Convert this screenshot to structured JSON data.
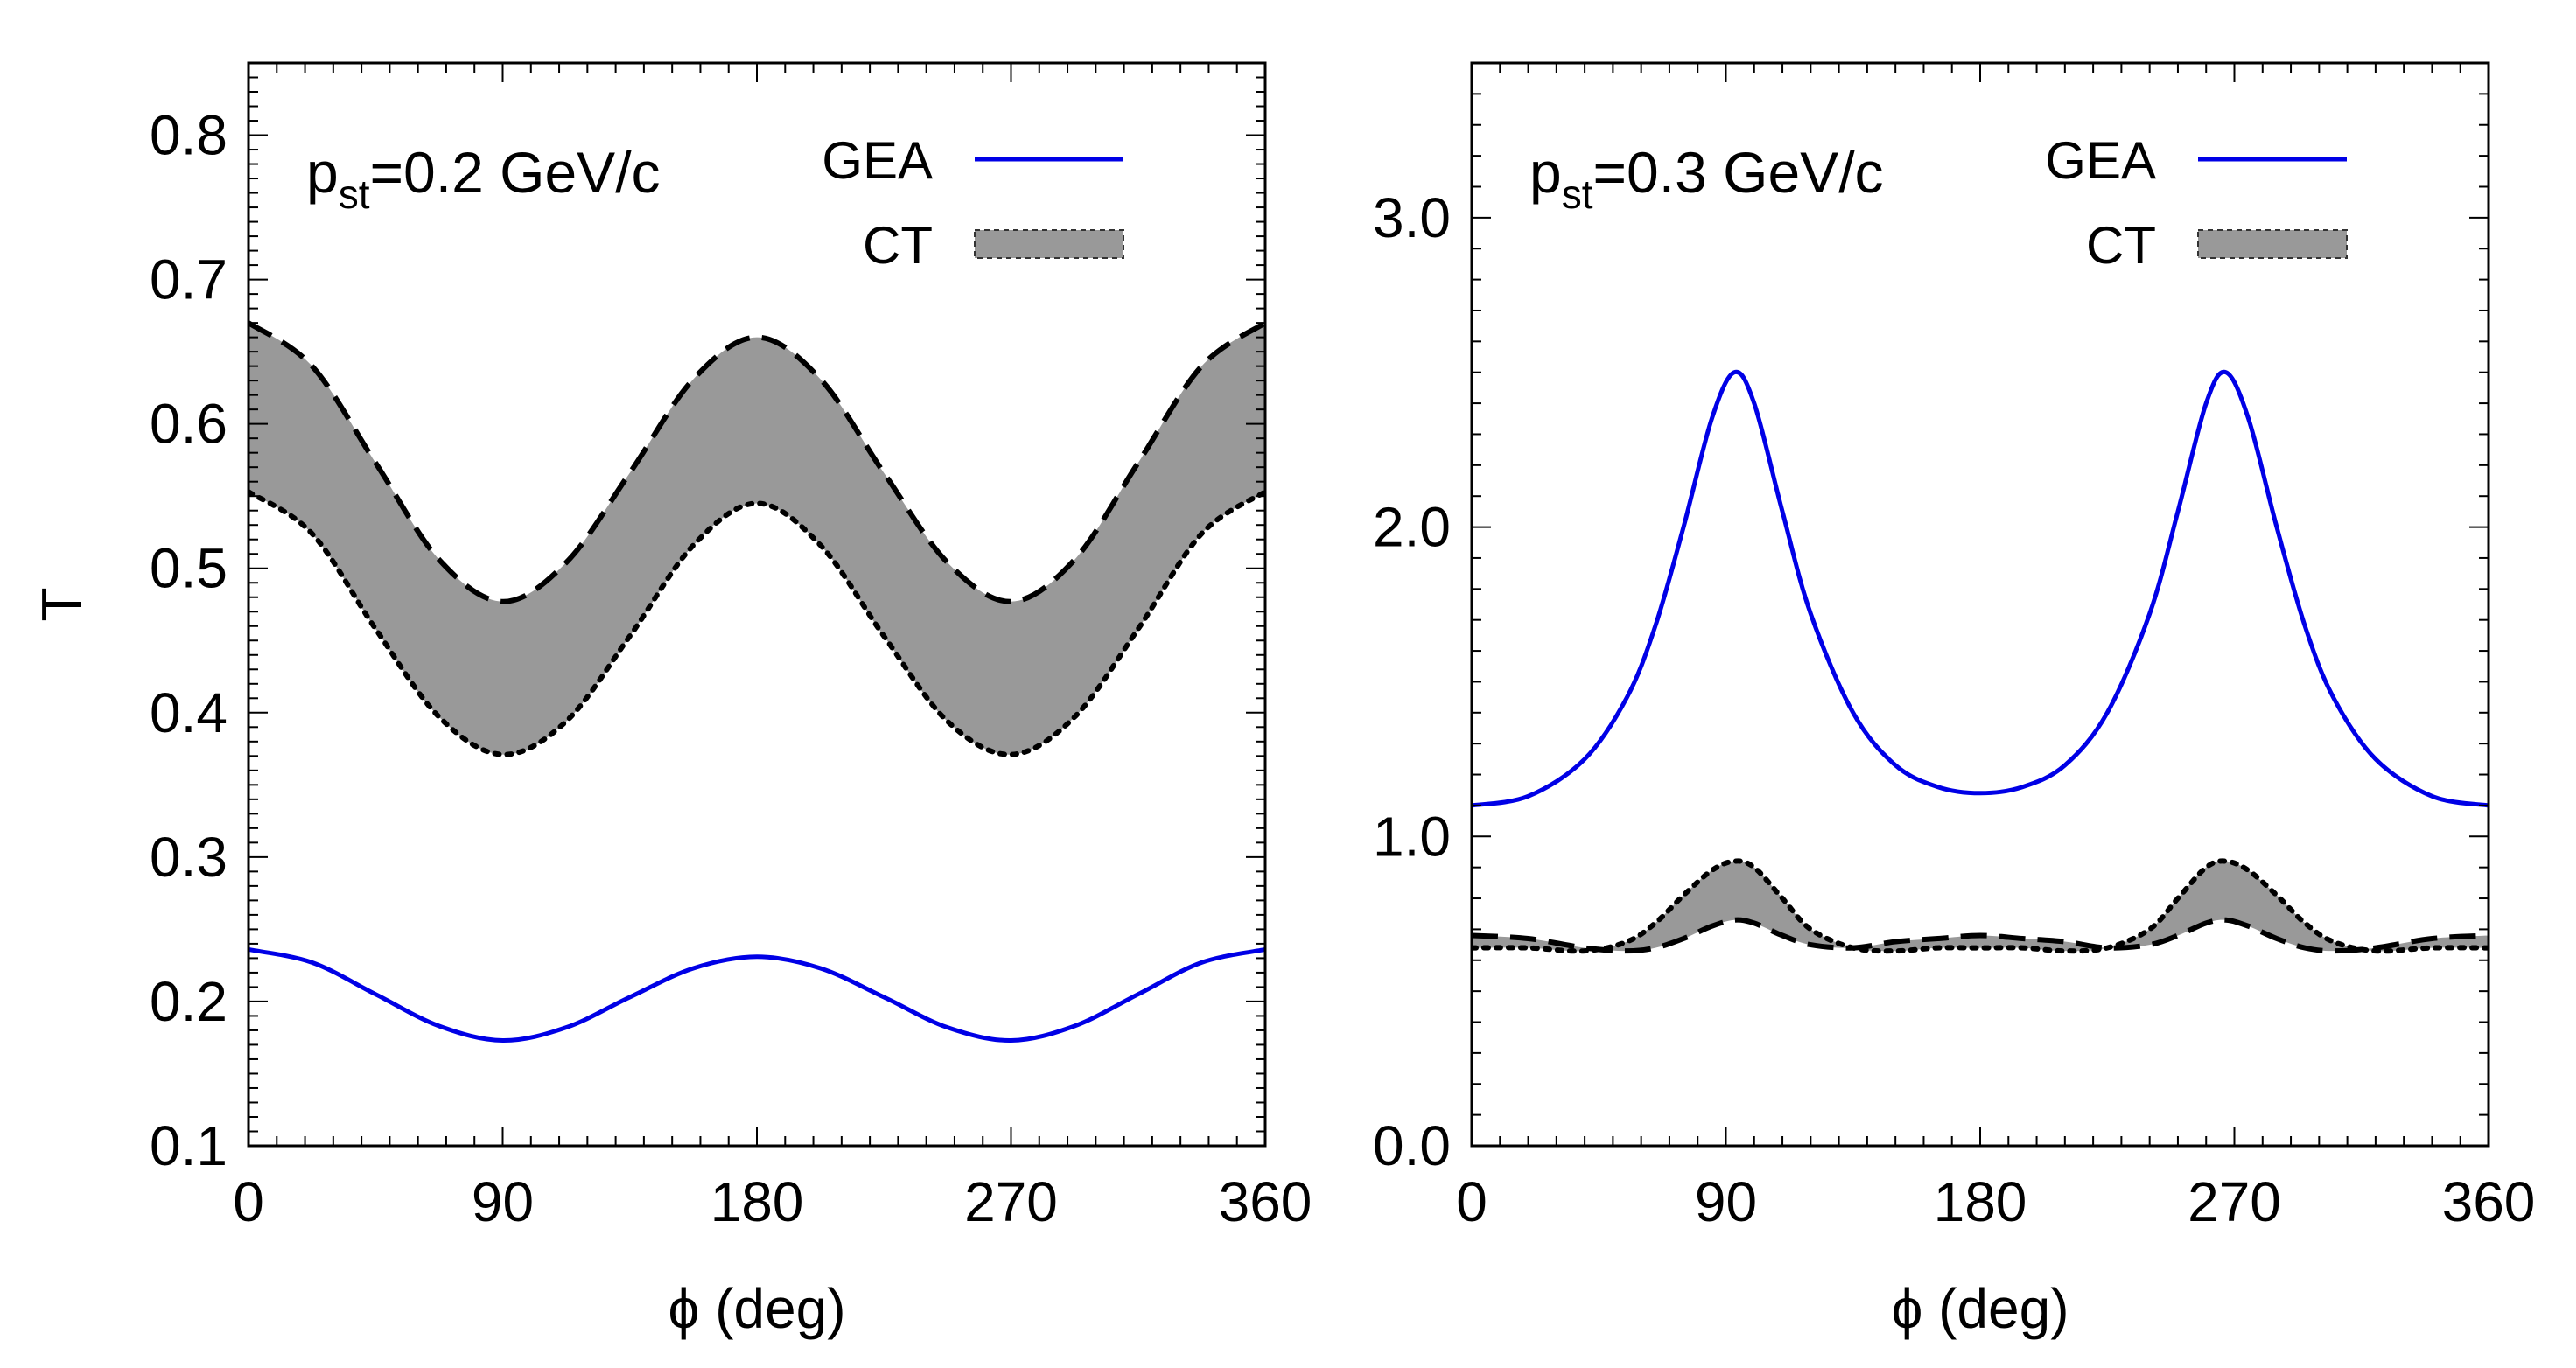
{
  "chart_data": [
    {
      "type": "area",
      "annotation": {
        "main": "p",
        "sub": "st",
        "rest": "=0.2 GeV/c"
      },
      "xlabel": "ϕ (deg)",
      "ylabel": "T",
      "xlim": [
        0,
        360
      ],
      "ylim": [
        0.1,
        0.85
      ],
      "xticks": [
        0,
        90,
        180,
        270,
        360
      ],
      "xtick_labels": [
        "0",
        "90",
        "180",
        "270",
        "360"
      ],
      "yticks": [
        0.1,
        0.2,
        0.3,
        0.4,
        0.5,
        0.6,
        0.7,
        0.8
      ],
      "ytick_labels": [
        "0.1",
        "0.2",
        "0.3",
        "0.4",
        "0.5",
        "0.6",
        "0.7",
        "0.8"
      ],
      "legend": {
        "placement": "top-right",
        "entries": [
          {
            "label": "GEA",
            "style": "blue-line"
          },
          {
            "label": "CT",
            "style": "gray-band"
          }
        ]
      },
      "series": [
        {
          "name": "GEA",
          "style": "solid",
          "color": "#0000e6",
          "x": [
            0,
            22.5,
            45,
            67.5,
            90,
            112.5,
            135,
            157.5,
            180,
            202.5,
            225,
            247.5,
            270,
            292.5,
            315,
            337.5,
            360
          ],
          "y": [
            0.236,
            0.227,
            0.205,
            0.183,
            0.173,
            0.182,
            0.203,
            0.223,
            0.231,
            0.223,
            0.203,
            0.182,
            0.173,
            0.183,
            0.205,
            0.227,
            0.236
          ]
        },
        {
          "name": "CT upper",
          "style": "dashed",
          "color": "#000000",
          "x": [
            0,
            22.5,
            45,
            67.5,
            90,
            112.5,
            135,
            157.5,
            180,
            202.5,
            225,
            247.5,
            270,
            292.5,
            315,
            337.5,
            360
          ],
          "y": [
            0.67,
            0.64,
            0.573,
            0.506,
            0.477,
            0.504,
            0.566,
            0.631,
            0.66,
            0.631,
            0.566,
            0.504,
            0.477,
            0.506,
            0.573,
            0.64,
            0.67
          ]
        },
        {
          "name": "CT lower",
          "style": "dotted",
          "color": "#000000",
          "x": [
            0,
            22.5,
            45,
            67.5,
            90,
            112.5,
            135,
            157.5,
            180,
            202.5,
            225,
            247.5,
            270,
            292.5,
            315,
            337.5,
            360
          ],
          "y": [
            0.553,
            0.524,
            0.458,
            0.397,
            0.371,
            0.394,
            0.453,
            0.516,
            0.545,
            0.516,
            0.453,
            0.394,
            0.371,
            0.397,
            0.458,
            0.524,
            0.553
          ]
        }
      ],
      "band": {
        "between": [
          "CT lower",
          "CT upper"
        ],
        "color": "#999999"
      }
    },
    {
      "type": "area",
      "annotation": {
        "main": "p",
        "sub": "st",
        "rest": "=0.3 GeV/c"
      },
      "xlabel": "ϕ (deg)",
      "ylabel": "",
      "xlim": [
        0,
        360
      ],
      "ylim": [
        0,
        3.5
      ],
      "xticks": [
        0,
        90,
        180,
        270,
        360
      ],
      "xtick_labels": [
        "0",
        "90",
        "180",
        "270",
        "360"
      ],
      "yticks": [
        0,
        1,
        2,
        3
      ],
      "ytick_labels": [
        "0.0",
        "1.0",
        "2.0",
        "3.0"
      ],
      "legend": {
        "placement": "top-right",
        "entries": [
          {
            "label": "GEA",
            "style": "blue-line"
          },
          {
            "label": "CT",
            "style": "gray-band"
          }
        ]
      },
      "series": [
        {
          "name": "GEA",
          "style": "solid",
          "color": "#0000e6",
          "x": [
            0,
            20,
            40,
            55,
            65,
            75,
            85,
            93,
            100,
            110,
            120,
            135,
            150,
            165,
            180,
            195,
            210,
            225,
            240,
            250,
            260,
            267,
            275,
            285,
            295,
            305,
            320,
            340,
            360
          ],
          "y": [
            1.1,
            1.13,
            1.25,
            1.45,
            1.68,
            2.0,
            2.35,
            2.5,
            2.4,
            2.05,
            1.72,
            1.4,
            1.23,
            1.16,
            1.14,
            1.16,
            1.23,
            1.4,
            1.72,
            2.05,
            2.4,
            2.5,
            2.35,
            2.0,
            1.68,
            1.45,
            1.25,
            1.13,
            1.1
          ]
        },
        {
          "name": "CT upper",
          "style": "dotted",
          "color": "#000000",
          "x": [
            0,
            20,
            40,
            55,
            65,
            75,
            85,
            93,
            100,
            110,
            120,
            135,
            150,
            165,
            180,
            195,
            210,
            225,
            240,
            250,
            260,
            267,
            275,
            285,
            295,
            305,
            320,
            340,
            360
          ],
          "y": [
            0.64,
            0.64,
            0.63,
            0.66,
            0.72,
            0.81,
            0.89,
            0.92,
            0.9,
            0.8,
            0.7,
            0.64,
            0.63,
            0.64,
            0.64,
            0.64,
            0.63,
            0.64,
            0.7,
            0.8,
            0.9,
            0.92,
            0.89,
            0.81,
            0.72,
            0.66,
            0.63,
            0.64,
            0.64
          ]
        },
        {
          "name": "CT lower",
          "style": "dashed",
          "color": "#000000",
          "x": [
            0,
            20,
            40,
            55,
            65,
            75,
            85,
            93,
            100,
            110,
            120,
            135,
            150,
            165,
            180,
            195,
            210,
            225,
            240,
            250,
            260,
            267,
            275,
            285,
            295,
            305,
            320,
            340,
            360
          ],
          "y": [
            0.68,
            0.67,
            0.64,
            0.63,
            0.64,
            0.67,
            0.71,
            0.73,
            0.72,
            0.68,
            0.65,
            0.64,
            0.66,
            0.67,
            0.68,
            0.67,
            0.66,
            0.64,
            0.65,
            0.68,
            0.72,
            0.73,
            0.71,
            0.67,
            0.64,
            0.63,
            0.64,
            0.67,
            0.68
          ]
        }
      ],
      "band": {
        "between": [
          "CT lower",
          "CT upper"
        ],
        "color": "#999999"
      }
    }
  ]
}
